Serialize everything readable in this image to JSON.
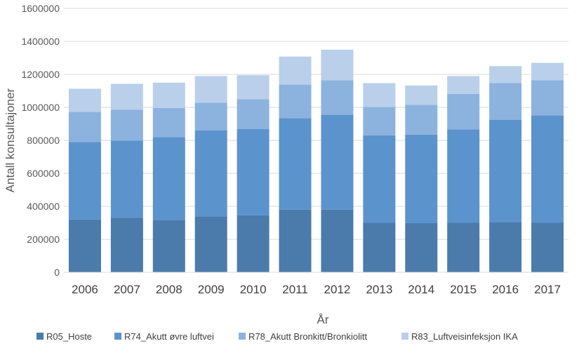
{
  "chart_data": {
    "type": "bar",
    "stacked": true,
    "title": "",
    "xlabel": "År",
    "ylabel": "Antall konsultajoner",
    "ylim": [
      0,
      1600000
    ],
    "yticks": [
      0,
      200000,
      400000,
      600000,
      800000,
      1000000,
      1200000,
      1400000,
      1600000
    ],
    "ytick_labels": [
      "0",
      "200000",
      "400000",
      "600000",
      "800000",
      "1000000",
      "1200000",
      "1400000",
      "1600000"
    ],
    "grid": true,
    "legend_position": "bottom",
    "categories": [
      "2006",
      "2007",
      "2008",
      "2009",
      "2010",
      "2011",
      "2012",
      "2013",
      "2014",
      "2015",
      "2016",
      "2017"
    ],
    "series": [
      {
        "name": "R05_Hoste",
        "color": "#4a7bab",
        "values": [
          320000,
          330000,
          318000,
          338000,
          345000,
          380000,
          380000,
          300000,
          298000,
          300000,
          305000,
          300000
        ]
      },
      {
        "name": "R74_Akutt øvre luftvei",
        "color": "#5b93cd",
        "values": [
          470000,
          468000,
          502000,
          523000,
          523000,
          555000,
          575000,
          530000,
          537000,
          567000,
          620000,
          652000
        ]
      },
      {
        "name": "R78_Akutt Bronkitt/Bronkiolitt",
        "color": "#8cb2de",
        "values": [
          183000,
          187000,
          177000,
          167000,
          182000,
          203000,
          210000,
          172000,
          180000,
          215000,
          223000,
          213000
        ]
      },
      {
        "name": "R83_Luftveisinfeksjon IKA",
        "color": "#b9cfea",
        "values": [
          140000,
          158000,
          153000,
          162000,
          145000,
          170000,
          185000,
          145000,
          118000,
          108000,
          102000,
          105000
        ]
      }
    ]
  }
}
